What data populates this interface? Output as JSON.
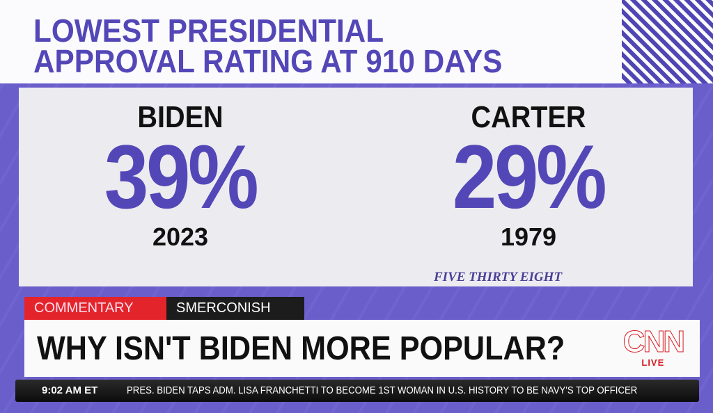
{
  "title_lines": [
    "LOWEST PRESIDENTIAL",
    "APPROVAL RATING AT 910 DAYS"
  ],
  "comparisons": [
    {
      "name": "BIDEN",
      "approval": "39%",
      "year": "2023"
    },
    {
      "name": "CARTER",
      "approval": "29%",
      "year": "1979"
    }
  ],
  "source": "FIVE THIRTY EIGHT",
  "tags": {
    "segment": "COMMENTARY",
    "show": "SMERCONISH"
  },
  "headline": "WHY ISN'T BIDEN MORE POPULAR?",
  "logo": {
    "brand": "CNN",
    "live": "LIVE"
  },
  "ticker": {
    "time": "9:02 AM ET",
    "text": "PRES. BIDEN TAPS ADM. LISA FRANCHETTI TO BECOME 1ST WOMAN IN U.S. HISTORY TO BE NAVY'S TOP OFFICER"
  },
  "colors": {
    "purple": "#6a5ecb",
    "title": "#5347b8",
    "red": "#e3252b"
  }
}
